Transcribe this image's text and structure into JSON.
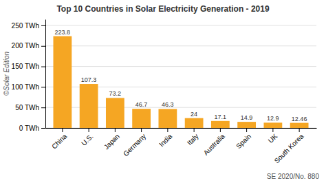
{
  "chart_data": {
    "type": "bar",
    "title": "Top 10 Countries in Solar Electricity Generation - 2019",
    "ylabel": "©Solar Edition",
    "annotations": [
      "SE 2020/No. 880"
    ],
    "categories": [
      "China",
      "U.S.",
      "Japan",
      "Germany",
      "India",
      "Italy",
      "Australia",
      "Spain",
      "UK",
      "South Korea"
    ],
    "values": [
      223.8,
      107.3,
      73.2,
      46.7,
      46.3,
      24,
      17.1,
      14.9,
      12.9,
      12.46
    ],
    "color": "#F5A623",
    "ylim": [
      0,
      265
    ],
    "yticks": [
      {
        "value": 0,
        "label": "0 TWh"
      },
      {
        "value": 50,
        "label": "50 TWh"
      },
      {
        "value": 100,
        "label": "100 TWh"
      },
      {
        "value": 150,
        "label": "150 TWh"
      },
      {
        "value": 200,
        "label": "200 TWh"
      },
      {
        "value": 250,
        "label": "250 TWh"
      }
    ],
    "grid": true,
    "data_labels": true
  }
}
